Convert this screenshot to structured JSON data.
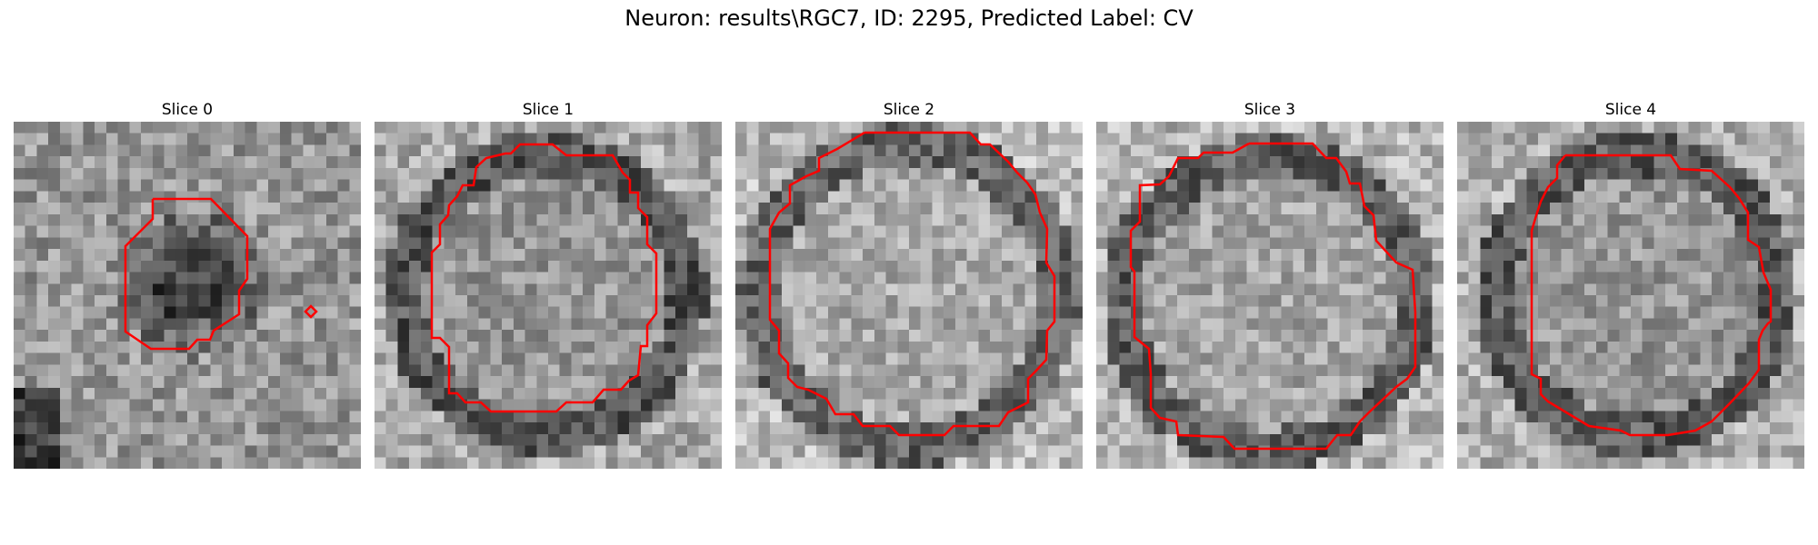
{
  "figure": {
    "title": "Neuron: results\\RGC7, ID: 2295, Predicted Label: CV"
  },
  "colors": {
    "contour": "#ff0000",
    "background": "#ffffff"
  },
  "panels": [
    {
      "title": "Slice 0"
    },
    {
      "title": "Slice 1"
    },
    {
      "title": "Slice 2"
    },
    {
      "title": "Slice 3"
    },
    {
      "title": "Slice 4"
    }
  ]
}
